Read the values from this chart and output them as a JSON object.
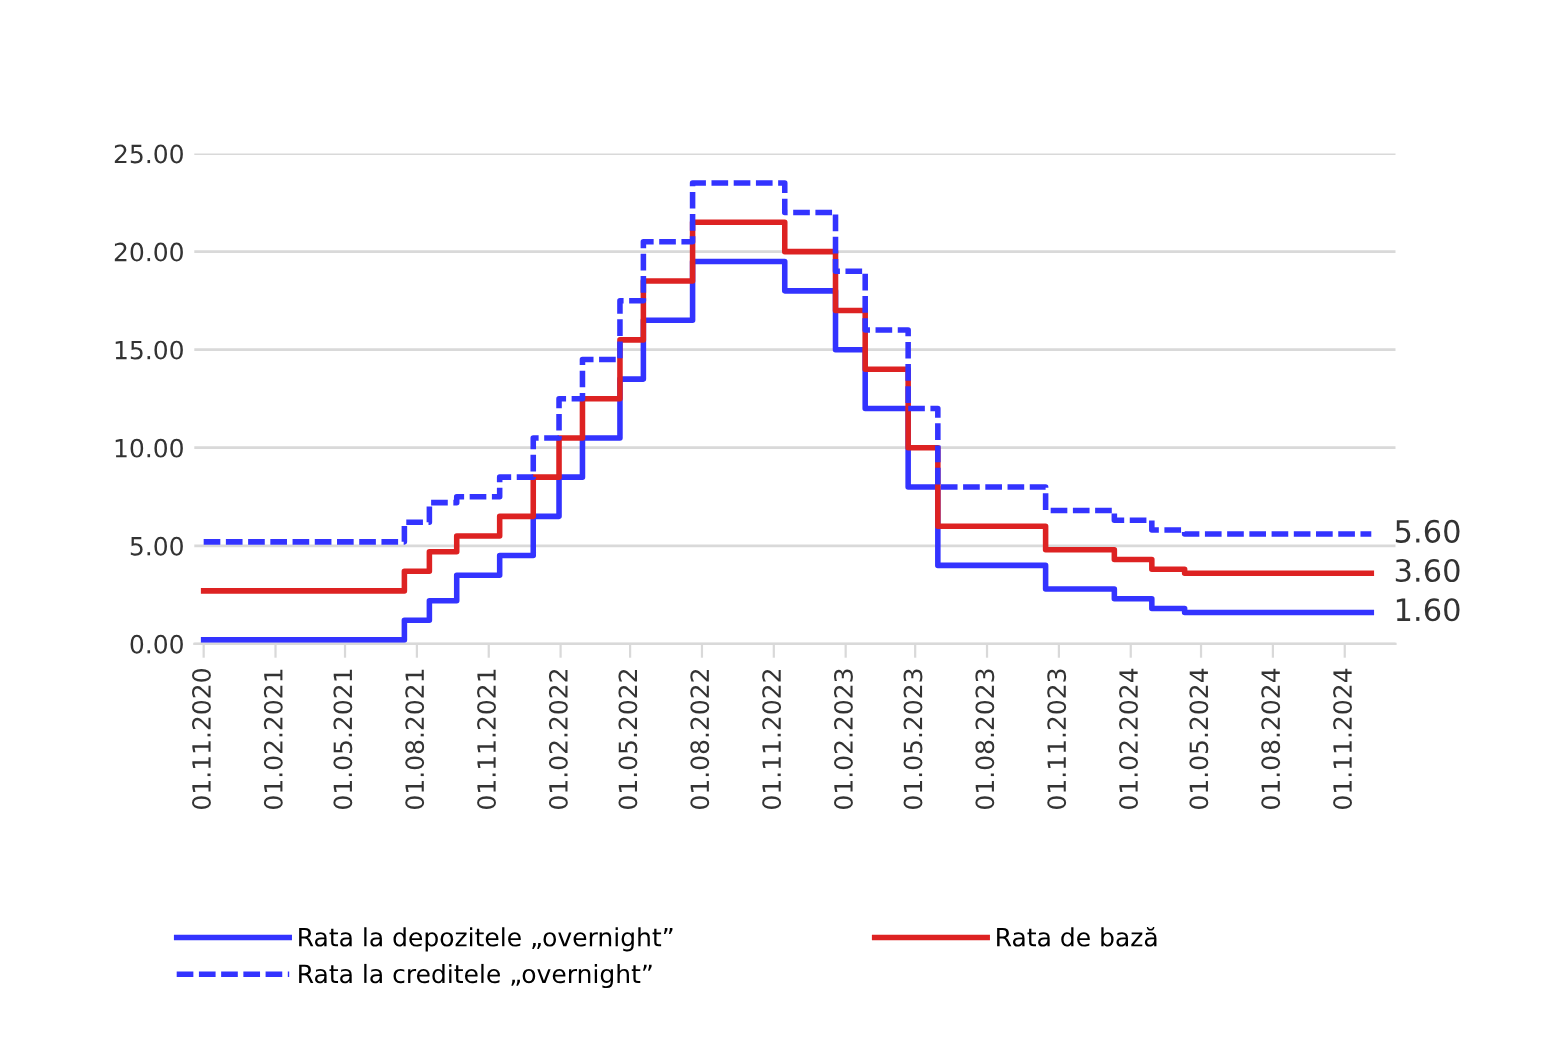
{
  "chart_data": {
    "type": "step",
    "x": [
      "2020-11-01",
      "2021-07-16",
      "2021-08-17",
      "2021-09-21",
      "2021-11-15",
      "2021-12-28",
      "2022-01-30",
      "2022-03-01",
      "2022-04-18",
      "2022-05-18",
      "2022-07-20",
      "2022-11-15",
      "2023-01-19",
      "2023-02-26",
      "2023-04-22",
      "2023-05-30",
      "2023-10-15",
      "2024-01-11",
      "2024-02-28",
      "2024-04-10",
      "2024-12-05"
    ],
    "series": [
      {
        "name": "Rata la depozitele „overnight”",
        "color": "#3333ff",
        "line_style": "solid",
        "values": [
          0.2,
          1.2,
          2.2,
          3.5,
          4.5,
          6.5,
          8.5,
          10.5,
          13.5,
          16.5,
          19.5,
          18,
          15,
          12,
          8,
          4,
          2.8,
          2.3,
          1.8,
          1.6,
          1.6
        ]
      },
      {
        "name": "Rata de bază",
        "color": "#dd2222",
        "line_style": "solid",
        "values": [
          2.7,
          3.7,
          4.7,
          5.5,
          6.5,
          8.5,
          10.5,
          12.5,
          15.5,
          18.5,
          21.5,
          20,
          17,
          14,
          10,
          6,
          4.8,
          4.3,
          3.8,
          3.6,
          3.6
        ]
      },
      {
        "name": "Rata la creditele „overnight”",
        "color": "#3333ff",
        "line_style": "dashed",
        "values": [
          5.2,
          6.2,
          7.2,
          7.5,
          8.5,
          10.5,
          12.5,
          14.5,
          17.5,
          20.5,
          23.5,
          22,
          19,
          16,
          12,
          8,
          6.8,
          6.3,
          5.8,
          5.6,
          5.6
        ]
      }
    ],
    "xlim": [
      "2020-10-20",
      "2025-01-05"
    ],
    "xticks": [
      {
        "value": "2020-11-01",
        "label": "01.11.2020"
      },
      {
        "value": "2021-02-01",
        "label": "01.02.2021"
      },
      {
        "value": "2021-05-01",
        "label": "01.05.2021"
      },
      {
        "value": "2021-08-01",
        "label": "01.08.2021"
      },
      {
        "value": "2021-11-01",
        "label": "01.11.2021"
      },
      {
        "value": "2022-02-01",
        "label": "01.02.2022"
      },
      {
        "value": "2022-05-01",
        "label": "01.05.2022"
      },
      {
        "value": "2022-08-01",
        "label": "01.08.2022"
      },
      {
        "value": "2022-11-01",
        "label": "01.11.2022"
      },
      {
        "value": "2023-02-01",
        "label": "01.02.2023"
      },
      {
        "value": "2023-05-01",
        "label": "01.05.2023"
      },
      {
        "value": "2023-08-01",
        "label": "01.08.2023"
      },
      {
        "value": "2023-11-01",
        "label": "01.11.2023"
      },
      {
        "value": "2024-02-01",
        "label": "01.02.2024"
      },
      {
        "value": "2024-05-01",
        "label": "01.05.2024"
      },
      {
        "value": "2024-08-01",
        "label": "01.08.2024"
      },
      {
        "value": "2024-11-01",
        "label": "01.11.2024"
      }
    ],
    "ylim": [
      0,
      25
    ],
    "yticks": [
      {
        "value": 0,
        "label": "0.00"
      },
      {
        "value": 5,
        "label": "5.00"
      },
      {
        "value": 10,
        "label": "10.00"
      },
      {
        "value": 15,
        "label": "15.00"
      },
      {
        "value": 20,
        "label": "20.00"
      },
      {
        "value": 25,
        "label": "25.00"
      }
    ],
    "grid": "y",
    "legend": "bottom",
    "annotations": [
      {
        "text": "5.60",
        "x": "2024-12-05",
        "y": 5.6
      },
      {
        "text": "3.60",
        "x": "2024-12-05",
        "y": 3.6
      },
      {
        "text": "1.60",
        "x": "2024-12-05",
        "y": 1.6
      }
    ]
  }
}
